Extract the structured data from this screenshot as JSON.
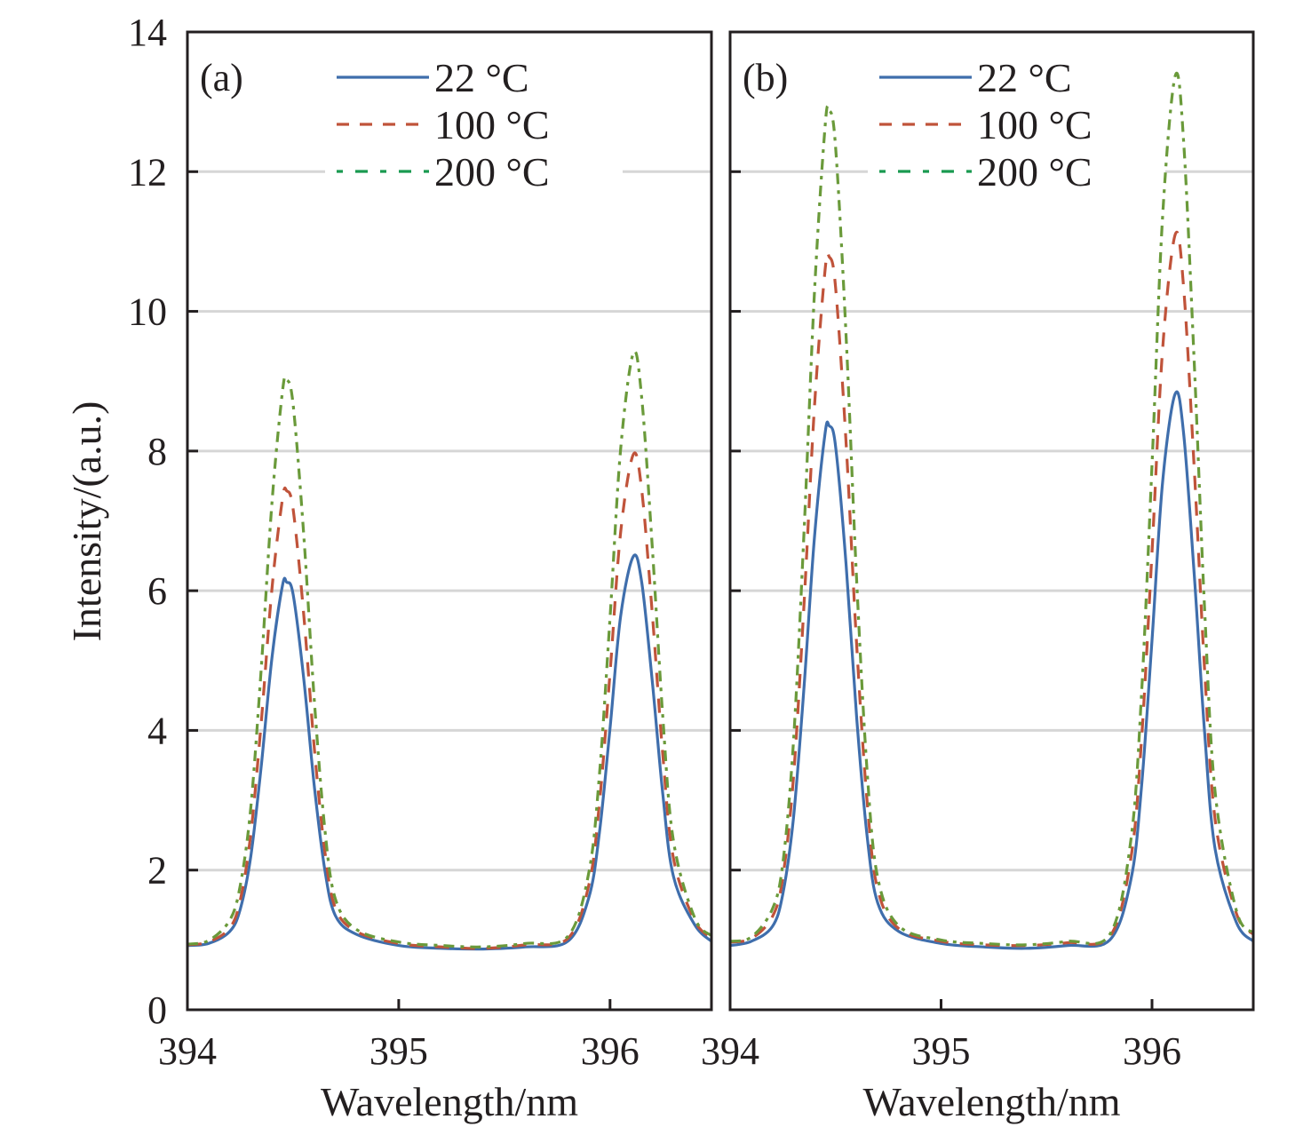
{
  "chart_data": {
    "type": "line",
    "ylabel": "Intensity/(a.u.)",
    "y_ticks": [
      "0",
      "2",
      "4",
      "6",
      "8",
      "10",
      "12",
      "14"
    ],
    "ylim": [
      0,
      14
    ],
    "grid": true,
    "series_styles": [
      {
        "name": "22 °C",
        "color": "#3f6eac",
        "legend_color": "#3f6eac",
        "dash": "solid"
      },
      {
        "name": "100 °C",
        "color": "#c0533a",
        "legend_color": "#c0533a",
        "dash": "dashed"
      },
      {
        "name": "200 °C",
        "color": "#6a9a3a",
        "legend_color": "#1a9a50",
        "dash": "dash-dot"
      }
    ],
    "panels": [
      {
        "label": "(a)",
        "xlabel": "Wavelength/nm",
        "xlim": [
          394,
          396.48
        ],
        "x_ticks": [
          "394",
          "395",
          "396"
        ],
        "legend": [
          "22 °C",
          "100 °C",
          "200 °C"
        ],
        "legend_position": "top-center",
        "x": [
          394.0,
          394.1,
          394.2,
          394.25,
          394.3,
          394.35,
          394.4,
          394.45,
          394.47,
          394.5,
          394.55,
          394.6,
          394.65,
          394.7,
          394.8,
          395.0,
          395.2,
          395.4,
          395.6,
          395.8,
          395.9,
          395.95,
          396.0,
          396.05,
          396.11,
          396.15,
          396.2,
          396.25,
          396.3,
          396.4,
          396.48
        ],
        "series": [
          {
            "name": "22 °C",
            "values": [
              0.92,
              0.95,
              1.12,
              1.44,
              2.2,
              3.51,
              5.04,
              6.08,
              6.12,
              5.95,
              4.76,
              3.22,
              2.01,
              1.35,
              1.08,
              0.92,
              0.88,
              0.87,
              0.9,
              0.98,
              1.61,
              2.54,
              4.03,
              5.63,
              6.49,
              6.12,
              4.7,
              3.08,
              1.91,
              1.22,
              0.98
            ]
          },
          {
            "name": "100 °C",
            "values": [
              0.93,
              0.97,
              1.17,
              1.57,
              2.52,
              4.14,
              6.03,
              7.32,
              7.43,
              7.17,
              5.68,
              3.77,
              2.28,
              1.46,
              1.12,
              0.95,
              0.9,
              0.88,
              0.93,
              1.02,
              1.79,
              2.96,
              4.82,
              6.83,
              7.95,
              7.44,
              5.67,
              3.64,
              2.17,
              1.28,
              1.03
            ]
          },
          {
            "name": "200 °C",
            "values": [
              0.94,
              0.99,
              1.28,
              1.78,
              2.9,
              4.92,
              7.26,
              8.86,
              9.02,
              8.67,
              6.83,
              4.46,
              2.6,
              1.59,
              1.15,
              0.97,
              0.92,
              0.9,
              0.95,
              1.05,
              1.97,
              3.37,
              5.61,
              8.02,
              9.4,
              8.76,
              6.62,
              4.18,
              2.42,
              1.32,
              1.06
            ]
          }
        ]
      },
      {
        "label": "(b)",
        "xlabel": "Wavelength/nm",
        "xlim": [
          394,
          396.48
        ],
        "x_ticks": [
          "394",
          "395",
          "396"
        ],
        "legend": [
          "22 °C",
          "100 °C",
          "200 °C"
        ],
        "legend_position": "top-center",
        "x": [
          394.0,
          394.1,
          394.2,
          394.25,
          394.3,
          394.35,
          394.4,
          394.45,
          394.47,
          394.5,
          394.55,
          394.6,
          394.65,
          394.7,
          394.8,
          395.0,
          395.2,
          395.4,
          395.6,
          395.8,
          395.9,
          395.95,
          396.0,
          396.05,
          396.11,
          396.15,
          396.2,
          396.25,
          396.3,
          396.4,
          396.48
        ],
        "series": [
          {
            "name": "22 °C",
            "values": [
              0.92,
              0.98,
              1.19,
              1.66,
              2.74,
              4.6,
              6.77,
              8.25,
              8.36,
              8.07,
              6.37,
              4.18,
              2.47,
              1.53,
              1.12,
              0.95,
              0.9,
              0.88,
              0.92,
              1.0,
              1.86,
              3.18,
              5.29,
              7.55,
              8.82,
              8.25,
              6.24,
              3.94,
              2.29,
              1.25,
              0.98
            ]
          },
          {
            "name": "100 °C",
            "values": [
              0.97,
              1.02,
              1.33,
              1.9,
              3.32,
              5.78,
              8.64,
              10.59,
              10.78,
              10.35,
              8.11,
              5.22,
              2.96,
              1.72,
              1.16,
              0.98,
              0.93,
              0.92,
              0.96,
              1.05,
              2.17,
              3.85,
              6.55,
              9.45,
              11.1,
              10.34,
              7.76,
              4.83,
              2.71,
              1.38,
              1.08
            ]
          },
          {
            "name": "200 °C",
            "values": [
              0.98,
              1.04,
              1.44,
              2.1,
              3.83,
              6.81,
              10.28,
              12.64,
              12.88,
              12.36,
              9.64,
              6.14,
              3.39,
              1.89,
              1.2,
              1.0,
              0.95,
              0.93,
              0.98,
              1.08,
              2.43,
              4.5,
              7.8,
              11.35,
              13.37,
              12.43,
              9.28,
              5.69,
              3.1,
              1.42,
              1.1
            ]
          }
        ]
      }
    ]
  }
}
